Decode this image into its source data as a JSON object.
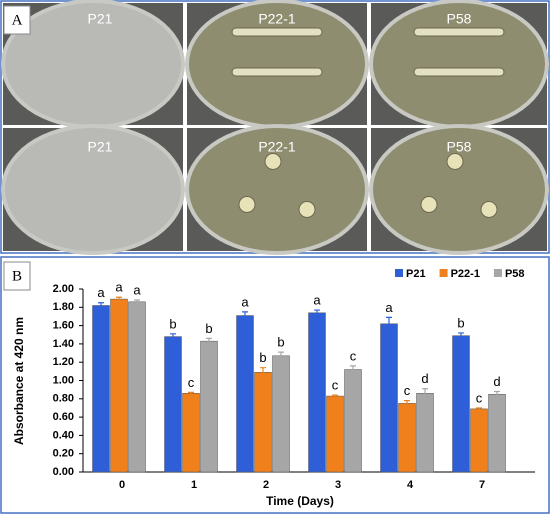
{
  "panel_a": {
    "label": "A",
    "plates": [
      "P21",
      "P22-1",
      "P58",
      "P21",
      "P22-1",
      "P58"
    ]
  },
  "chart_data": {
    "type": "bar",
    "panel_label": "B",
    "xlabel": "Time (Days)",
    "ylabel": "Absorbance at 420 nm",
    "categories": [
      "0",
      "1",
      "2",
      "3",
      "4",
      "7"
    ],
    "series": [
      {
        "name": "P21",
        "color": "#2f5fd8",
        "values": [
          1.82,
          1.48,
          1.71,
          1.74,
          1.62,
          1.49
        ],
        "errors": [
          0.03,
          0.03,
          0.04,
          0.03,
          0.07,
          0.03
        ],
        "letters": [
          "a",
          "b",
          "a",
          "a",
          "a",
          "b"
        ]
      },
      {
        "name": "P22-1",
        "color": "#f0801c",
        "values": [
          1.89,
          0.86,
          1.09,
          0.83,
          0.75,
          0.69
        ],
        "errors": [
          0.02,
          0.01,
          0.05,
          0.01,
          0.03,
          0.01
        ],
        "letters": [
          "a",
          "c",
          "b",
          "c",
          "c",
          "c"
        ]
      },
      {
        "name": "P58",
        "color": "#a6a6a6",
        "values": [
          1.86,
          1.43,
          1.27,
          1.12,
          0.86,
          0.85
        ],
        "errors": [
          0.02,
          0.03,
          0.04,
          0.04,
          0.05,
          0.03
        ],
        "letters": [
          "a",
          "b",
          "b",
          "c",
          "d",
          "d"
        ]
      }
    ],
    "ylim": [
      0,
      2.0
    ],
    "yticks": [
      {
        "value": 0,
        "label": "0.00"
      },
      {
        "value": 0.2,
        "label": "0.20"
      },
      {
        "value": 0.4,
        "label": "0.40"
      },
      {
        "value": 0.6,
        "label": "0.60"
      },
      {
        "value": 0.8,
        "label": "0.80"
      },
      {
        "value": 1.0,
        "label": "1.00"
      },
      {
        "value": 1.2,
        "label": "1.20"
      },
      {
        "value": 1.4,
        "label": "1.40"
      },
      {
        "value": 1.6,
        "label": "1.60"
      },
      {
        "value": 1.8,
        "label": "1.80"
      },
      {
        "value": 2.0,
        "label": "2.00"
      }
    ],
    "legend": "top-right"
  }
}
